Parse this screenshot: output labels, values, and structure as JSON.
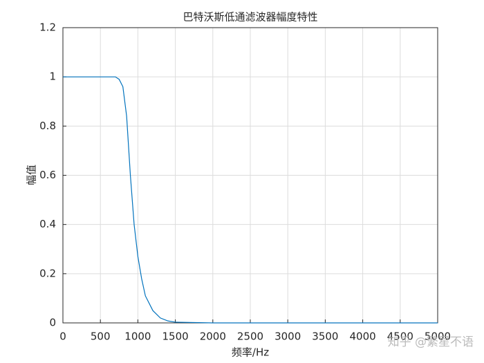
{
  "chart_data": {
    "type": "line",
    "title": "巴特沃斯低通滤波器幅度特性",
    "x_label": "频率/Hz",
    "y_label": "幅值",
    "x": [
      0,
      500,
      700,
      750,
      800,
      850,
      900,
      950,
      1000,
      1050,
      1100,
      1200,
      1300,
      1400,
      1500,
      2000,
      3000,
      4000,
      5000
    ],
    "series": [
      {
        "name": "幅值",
        "color": "#0072bd",
        "values": [
          1,
          1,
          1,
          0.99,
          0.96,
          0.84,
          0.6,
          0.4,
          0.27,
          0.18,
          0.11,
          0.05,
          0.02,
          0.008,
          0.003,
          0,
          0,
          0,
          0
        ]
      }
    ],
    "xlim": [
      0,
      5000
    ],
    "xticks": [
      0,
      500,
      1000,
      1500,
      2000,
      2500,
      3000,
      3500,
      4000,
      4500,
      5000
    ],
    "ylim": [
      0,
      1.2
    ],
    "yticks": [
      0,
      0.2,
      0.4,
      0.6,
      0.8,
      1,
      1.2
    ],
    "grid": true,
    "watermark": "知乎 @繁星不语"
  }
}
